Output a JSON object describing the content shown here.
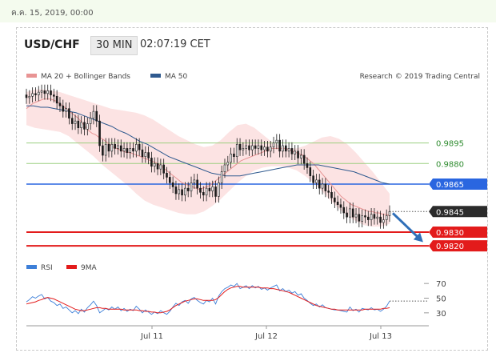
{
  "header": {
    "date": "ค.ค. 15, 2019, 00:00",
    "symbol": "USD/CHF",
    "timeframe": "30 MIN",
    "time": "02:07:19 CET"
  },
  "legend": {
    "ma20_bb": "MA 20 + Bollinger Bands",
    "ma50": "MA 50",
    "credit": "Research © 2019 Trading Central",
    "rsi": "RSI",
    "ma9": "9MA"
  },
  "colors": {
    "ma20": "#e89494",
    "bands": "#fbdcdc",
    "ma50": "#2f5a8f",
    "support": "#e31b1b",
    "resistance": "#2a66e0",
    "green_level": "#9ccf80",
    "candle": "#1a1a1a",
    "rsi": "#3d7fd8",
    "rsi_ma": "#e31b1b",
    "arrow": "#2f6fb8"
  },
  "chart_data": [
    {
      "type": "candlestick",
      "title": "USD/CHF",
      "x_ticks": [
        "Jul 11",
        "Jul 12",
        "Jul 13"
      ],
      "ylim": [
        0.98125,
        0.9935
      ],
      "close": [
        0.9928,
        0.9929,
        0.9931,
        0.993,
        0.9932,
        0.9933,
        0.9931,
        0.9933,
        0.993,
        0.9929,
        0.9924,
        0.9922,
        0.9918,
        0.992,
        0.9913,
        0.9909,
        0.9911,
        0.9906,
        0.991,
        0.9905,
        0.9909,
        0.9913,
        0.9918,
        0.9911,
        0.9893,
        0.9886,
        0.9894,
        0.9889,
        0.9894,
        0.9891,
        0.9893,
        0.9889,
        0.9891,
        0.9888,
        0.9891,
        0.9889,
        0.9894,
        0.989,
        0.9885,
        0.9888,
        0.9884,
        0.9878,
        0.988,
        0.9876,
        0.9879,
        0.9873,
        0.987,
        0.9866,
        0.9863,
        0.9858,
        0.9861,
        0.9857,
        0.9862,
        0.986,
        0.9866,
        0.9868,
        0.9862,
        0.9859,
        0.9857,
        0.9862,
        0.986,
        0.9863,
        0.9856,
        0.9866,
        0.9874,
        0.9879,
        0.9881,
        0.9887,
        0.9885,
        0.9894,
        0.989,
        0.9891,
        0.9893,
        0.989,
        0.9893,
        0.9891,
        0.9893,
        0.989,
        0.9892,
        0.9889,
        0.9892,
        0.9895,
        0.9897,
        0.9889,
        0.9893,
        0.9889,
        0.9891,
        0.9887,
        0.9889,
        0.9884,
        0.9886,
        0.988,
        0.9877,
        0.9871,
        0.9866,
        0.9868,
        0.9862,
        0.9865,
        0.986,
        0.9859,
        0.9855,
        0.9852,
        0.985,
        0.9848,
        0.9844,
        0.9841,
        0.9847,
        0.9841,
        0.9843,
        0.9838,
        0.9842,
        0.9841,
        0.9839,
        0.9843,
        0.984,
        0.9841,
        0.9837,
        0.9839,
        0.9842,
        0.9845
      ],
      "ma20": [
        0.992,
        0.9922,
        0.9924,
        0.9925,
        0.9926,
        0.9927,
        0.9927,
        0.9927,
        0.9926,
        0.9925,
        0.9923,
        0.9921,
        0.9919,
        0.9917,
        0.9915,
        0.9913,
        0.991,
        0.9907,
        0.9904,
        0.9902,
        0.9901,
        0.9899,
        0.9898,
        0.9896,
        0.9894,
        0.9892,
        0.9891,
        0.989,
        0.9889,
        0.9888,
        0.9888,
        0.9887,
        0.9886,
        0.9885,
        0.9884,
        0.9883,
        0.9882,
        0.9881,
        0.988,
        0.9878,
        0.9876,
        0.9874,
        0.9872,
        0.987,
        0.9868,
        0.9866,
        0.9865,
        0.9864,
        0.9863,
        0.9862,
        0.9861,
        0.9862,
        0.9863,
        0.9864,
        0.9866,
        0.9868,
        0.987,
        0.9872,
        0.9874,
        0.9876,
        0.9878,
        0.988,
        0.9882,
        0.9883,
        0.9884,
        0.9885,
        0.9886,
        0.9887,
        0.9888,
        0.9889,
        0.989,
        0.9891,
        0.9891,
        0.9891,
        0.9891,
        0.9891,
        0.989,
        0.9889,
        0.9888,
        0.9887,
        0.9886,
        0.9884,
        0.9882,
        0.988,
        0.9877,
        0.9874,
        0.9871,
        0.9868,
        0.9865,
        0.9862,
        0.9859,
        0.9856,
        0.9854,
        0.9852,
        0.985,
        0.9849,
        0.9848,
        0.9847,
        0.9846,
        0.9845,
        0.9845,
        0.9844,
        0.9844,
        0.9843,
        0.9843,
        0.9842
      ],
      "ma50": [
        0.9922,
        0.9922,
        0.9921,
        0.9921,
        0.992,
        0.9919,
        0.9918,
        0.9917,
        0.9915,
        0.9913,
        0.9911,
        0.9909,
        0.9907,
        0.9904,
        0.9902,
        0.9899,
        0.9896,
        0.9894,
        0.9891,
        0.9888,
        0.9885,
        0.9883,
        0.9881,
        0.9879,
        0.9877,
        0.9875,
        0.9873,
        0.9872,
        0.9871,
        0.9871,
        0.9871,
        0.9872,
        0.9873,
        0.9874,
        0.9875,
        0.9876,
        0.9877,
        0.9878,
        0.9879,
        0.9879,
        0.9879,
        0.9879,
        0.9878,
        0.9877,
        0.9876,
        0.9875,
        0.9874,
        0.9872,
        0.987,
        0.9868,
        0.9866,
        0.9865
      ],
      "bb_upper": [
        0.9932,
        0.9934,
        0.9934,
        0.9933,
        0.9932,
        0.993,
        0.9928,
        0.9926,
        0.9924,
        0.9922,
        0.992,
        0.9919,
        0.9918,
        0.9917,
        0.9915,
        0.9912,
        0.9908,
        0.9904,
        0.99,
        0.9897,
        0.9894,
        0.9892,
        0.9893,
        0.9897,
        0.9903,
        0.9908,
        0.9909,
        0.9906,
        0.9901,
        0.9896,
        0.9893,
        0.9891,
        0.9891,
        0.9893,
        0.9896,
        0.9899,
        0.99,
        0.9898,
        0.9894,
        0.9888,
        0.9881,
        0.9874,
        0.9866,
        0.9858
      ],
      "bb_lower": [
        0.9908,
        0.9906,
        0.9905,
        0.9904,
        0.9903,
        0.99,
        0.9895,
        0.989,
        0.9885,
        0.9879,
        0.9874,
        0.9869,
        0.9864,
        0.9858,
        0.9853,
        0.985,
        0.9848,
        0.9846,
        0.9844,
        0.9843,
        0.9843,
        0.9845,
        0.9849,
        0.9854,
        0.986,
        0.9866,
        0.9871,
        0.9875,
        0.9877,
        0.9878,
        0.9878,
        0.9877,
        0.9875,
        0.9871,
        0.9866,
        0.986,
        0.9853,
        0.9847,
        0.9842,
        0.9838,
        0.9835,
        0.9834,
        0.9834,
        0.9836
      ],
      "levels": [
        {
          "value": 0.9895,
          "label": "0.9895",
          "kind": "green"
        },
        {
          "value": 0.988,
          "label": "0.9880",
          "kind": "green"
        },
        {
          "value": 0.9865,
          "label": "0.9865",
          "kind": "resistance"
        },
        {
          "value": 0.9845,
          "label": "0.9845",
          "kind": "last"
        },
        {
          "value": 0.983,
          "label": "0.9830",
          "kind": "support"
        },
        {
          "value": 0.982,
          "label": "0.9820",
          "kind": "support"
        }
      ],
      "forecast": {
        "from": 0.9845,
        "to": 0.9822,
        "direction": "down"
      }
    },
    {
      "type": "line",
      "title": "RSI",
      "y_ticks": [
        70,
        50,
        30
      ],
      "ylim": [
        20,
        80
      ],
      "rsi": [
        45,
        48,
        52,
        50,
        53,
        55,
        49,
        51,
        46,
        44,
        40,
        42,
        36,
        38,
        34,
        30,
        33,
        29,
        35,
        31,
        37,
        41,
        46,
        40,
        30,
        33,
        36,
        34,
        38,
        35,
        38,
        33,
        36,
        32,
        35,
        33,
        39,
        35,
        30,
        34,
        31,
        28,
        31,
        29,
        33,
        30,
        28,
        32,
        38,
        43,
        40,
        45,
        47,
        43,
        49,
        51,
        47,
        44,
        42,
        47,
        45,
        50,
        42,
        53,
        59,
        63,
        65,
        68,
        66,
        70,
        63,
        65,
        67,
        63,
        67,
        64,
        66,
        62,
        64,
        61,
        64,
        66,
        68,
        60,
        63,
        59,
        61,
        57,
        59,
        54,
        56,
        50,
        47,
        43,
        40,
        42,
        38,
        41,
        37,
        36,
        35,
        34,
        34,
        33,
        32,
        31,
        38,
        33,
        35,
        31,
        36,
        35,
        34,
        37,
        34,
        35,
        32,
        35,
        39,
        46
      ],
      "ma9": [
        42,
        43,
        44,
        45,
        47,
        48,
        50,
        51,
        50,
        49,
        47,
        45,
        43,
        41,
        39,
        37,
        35,
        34,
        33,
        33,
        34,
        35,
        36,
        37,
        37,
        36,
        36,
        35,
        35,
        35,
        35,
        35,
        34,
        34,
        34,
        34,
        34,
        33,
        33,
        32,
        32,
        31,
        31,
        30,
        30,
        31,
        32,
        34,
        37,
        40,
        42,
        44,
        46,
        47,
        48,
        49,
        49,
        48,
        47,
        47,
        47,
        47,
        48,
        51,
        55,
        59,
        62,
        64,
        65,
        66,
        66,
        65,
        65,
        65,
        65,
        65,
        65,
        64,
        64,
        64,
        63,
        63,
        62,
        61,
        60,
        59,
        58,
        56,
        54,
        52,
        50,
        48,
        46,
        44,
        42,
        40,
        39,
        38,
        37,
        36,
        35,
        35,
        34,
        34,
        34,
        34,
        34,
        34,
        34,
        34,
        34,
        35,
        35,
        35,
        35,
        35,
        35,
        36,
        36,
        37
      ],
      "last": 46
    }
  ]
}
